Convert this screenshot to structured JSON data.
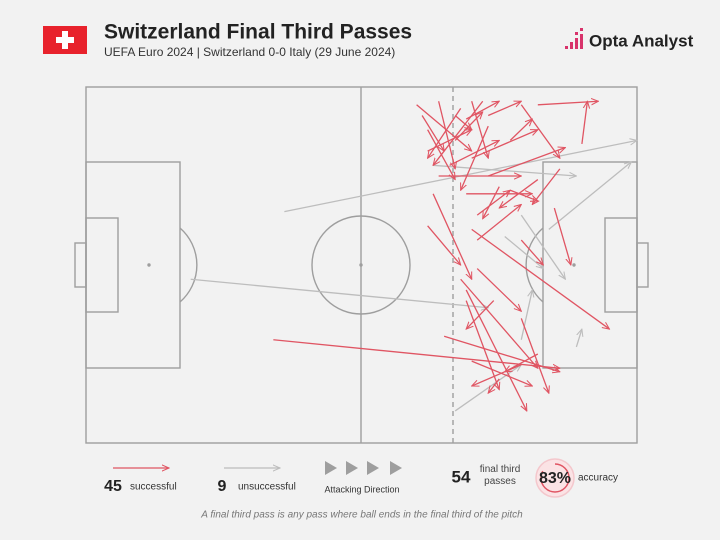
{
  "header": {
    "title": "Switzerland Final Third Passes",
    "subtitle": "UEFA Euro 2024 | Switzerland 0-0 Italy (29 June 2024)",
    "brand": "Opta Analyst"
  },
  "chart_data": {
    "type": "pass-map",
    "xlim": [
      0,
      100
    ],
    "ylim": [
      0,
      100
    ],
    "series": [
      {
        "name": "successful",
        "color": "#e05563",
        "count": 45,
        "passes": [
          [
            34,
            71,
            86,
            79
          ],
          [
            82,
            5,
            93,
            4
          ],
          [
            90,
            16,
            91,
            4
          ],
          [
            60,
            5,
            70,
            18
          ],
          [
            64,
            4,
            67,
            23
          ],
          [
            68,
            6,
            62,
            20
          ],
          [
            72,
            4,
            63,
            22
          ],
          [
            69,
            9,
            75,
            4
          ],
          [
            73,
            8,
            79,
            4
          ],
          [
            77,
            15,
            81,
            9
          ],
          [
            79,
            5,
            86,
            20
          ],
          [
            70,
            20,
            82,
            12
          ],
          [
            73,
            25,
            87,
            17
          ],
          [
            63,
            30,
            70,
            54
          ],
          [
            62,
            39,
            68,
            50
          ],
          [
            69,
            30,
            81,
            30
          ],
          [
            71,
            36,
            77,
            29
          ],
          [
            71,
            43,
            79,
            33
          ],
          [
            85,
            34,
            88,
            50
          ],
          [
            70,
            40,
            95,
            68
          ],
          [
            68,
            54,
            82,
            79
          ],
          [
            69,
            57,
            80,
            91
          ],
          [
            69,
            60,
            75,
            85
          ],
          [
            65,
            70,
            86,
            80
          ],
          [
            70,
            77,
            81,
            84
          ],
          [
            75,
            82,
            73,
            86
          ],
          [
            79,
            65,
            84,
            86
          ],
          [
            79,
            78,
            70,
            84
          ],
          [
            67,
            15,
            72,
            7
          ],
          [
            62,
            18,
            70,
            12
          ],
          [
            66,
            22,
            75,
            15
          ],
          [
            64,
            25,
            79,
            25
          ],
          [
            73,
            11,
            68,
            29
          ],
          [
            62,
            12,
            67,
            26
          ],
          [
            75,
            28,
            72,
            37
          ],
          [
            82,
            26,
            75,
            34
          ],
          [
            86,
            23,
            81,
            33
          ],
          [
            79,
            43,
            83,
            50
          ],
          [
            71,
            51,
            79,
            63
          ],
          [
            74,
            60,
            69,
            68
          ],
          [
            67,
            8,
            70,
            12
          ],
          [
            61,
            8,
            65,
            18
          ],
          [
            77,
            29,
            82,
            32
          ],
          [
            70,
            4,
            73,
            20
          ],
          [
            82,
            75,
            76,
            80
          ]
        ]
      },
      {
        "name": "unsuccessful",
        "color": "#bdbdbd",
        "count": 9,
        "passes": [
          [
            36,
            35,
            100,
            15
          ],
          [
            19,
            54,
            73,
            62
          ],
          [
            63,
            22,
            89,
            25
          ],
          [
            84,
            40,
            99,
            21
          ],
          [
            79,
            36,
            87,
            54
          ],
          [
            79,
            71,
            81,
            57
          ],
          [
            89,
            73,
            90,
            68
          ],
          [
            67,
            91,
            79,
            78
          ],
          [
            76,
            42,
            83,
            51
          ]
        ]
      }
    ],
    "direction_label": "Attacking Direction",
    "total": 54,
    "total_label": "final third passes",
    "accuracy": {
      "value": 83,
      "label": "83%"
    },
    "accuracy_label": "accuracy",
    "note": "A final third pass is any pass where ball ends in the final third of the pitch"
  }
}
